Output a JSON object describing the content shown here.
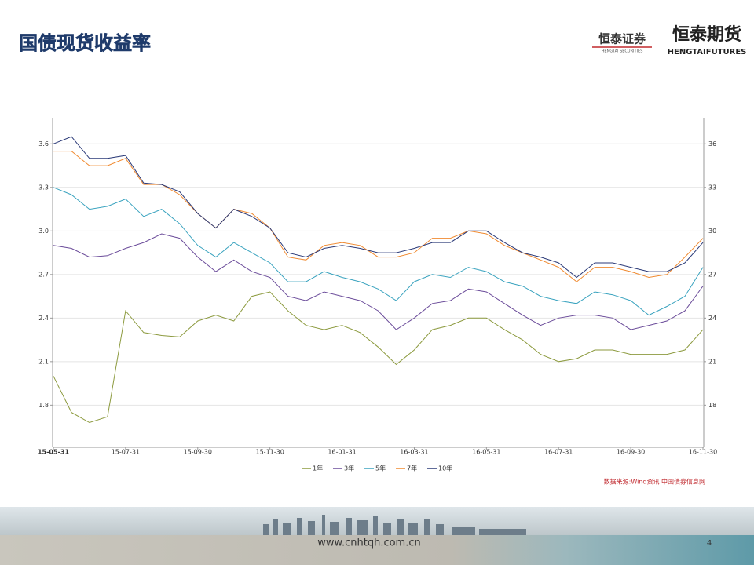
{
  "slide": {
    "title": "国债现货收益率",
    "logo1": "恒泰证券",
    "logo1_sub": "HENGTAI SECURITIES",
    "logo2": "恒泰期货",
    "logo2_sub": "HENGTAIFUTURES",
    "website": "www.cnhtqh.com.cn",
    "page": "4"
  },
  "chart_data": {
    "type": "line",
    "categories": [
      "15-05-31",
      null,
      null,
      null,
      "15-07-31",
      null,
      null,
      null,
      "15-09-30",
      null,
      null,
      null,
      "15-11-30",
      null,
      null,
      null,
      "16-01-31",
      null,
      null,
      null,
      "16-03-31",
      null,
      null,
      null,
      "16-05-31",
      null,
      null,
      null,
      "16-07-31",
      null,
      null,
      null,
      "16-09-30",
      null,
      null,
      null,
      "16-11-30"
    ],
    "series": [
      {
        "name": "1年",
        "color": "#8c9a3e",
        "values": [
          2.0,
          1.75,
          1.68,
          1.72,
          2.45,
          2.3,
          2.28,
          2.27,
          2.38,
          2.42,
          2.38,
          2.55,
          2.58,
          2.45,
          2.35,
          2.32,
          2.35,
          2.3,
          2.2,
          2.08,
          2.18,
          2.32,
          2.35,
          2.4,
          2.4,
          2.32,
          2.25,
          2.15,
          2.1,
          2.12,
          2.18,
          2.18,
          2.15,
          2.15,
          2.15,
          2.18,
          2.32
        ]
      },
      {
        "name": "3年",
        "color": "#6b4c9a",
        "values": [
          2.9,
          2.88,
          2.82,
          2.83,
          2.88,
          2.92,
          2.98,
          2.95,
          2.82,
          2.72,
          2.8,
          2.72,
          2.68,
          2.55,
          2.52,
          2.58,
          2.55,
          2.52,
          2.45,
          2.32,
          2.4,
          2.5,
          2.52,
          2.6,
          2.58,
          2.5,
          2.42,
          2.35,
          2.4,
          2.42,
          2.42,
          2.4,
          2.32,
          2.35,
          2.38,
          2.45,
          2.62
        ]
      },
      {
        "name": "5年",
        "color": "#3aa3bf",
        "values": [
          3.3,
          3.25,
          3.15,
          3.17,
          3.22,
          3.1,
          3.15,
          3.05,
          2.9,
          2.82,
          2.92,
          2.85,
          2.78,
          2.65,
          2.65,
          2.72,
          2.68,
          2.65,
          2.6,
          2.52,
          2.65,
          2.7,
          2.68,
          2.75,
          2.72,
          2.65,
          2.62,
          2.55,
          2.52,
          2.5,
          2.58,
          2.56,
          2.52,
          2.42,
          2.48,
          2.55,
          2.75
        ]
      },
      {
        "name": "7年",
        "color": "#f08a30",
        "values": [
          3.55,
          3.55,
          3.45,
          3.45,
          3.5,
          3.32,
          3.32,
          3.25,
          3.12,
          3.02,
          3.15,
          3.12,
          3.02,
          2.82,
          2.8,
          2.9,
          2.92,
          2.9,
          2.82,
          2.82,
          2.85,
          2.95,
          2.95,
          3.0,
          2.98,
          2.9,
          2.85,
          2.8,
          2.75,
          2.65,
          2.75,
          2.75,
          2.72,
          2.68,
          2.7,
          2.82,
          2.95
        ]
      },
      {
        "name": "10年",
        "color": "#2b3a78",
        "values": [
          3.6,
          3.65,
          3.5,
          3.5,
          3.52,
          3.33,
          3.32,
          3.27,
          3.12,
          3.02,
          3.15,
          3.1,
          3.02,
          2.85,
          2.82,
          2.88,
          2.9,
          2.88,
          2.85,
          2.85,
          2.88,
          2.92,
          2.92,
          3.0,
          3.0,
          2.92,
          2.85,
          2.82,
          2.78,
          2.68,
          2.78,
          2.78,
          2.75,
          2.72,
          2.72,
          2.78,
          2.92
        ]
      }
    ],
    "ylim": [
      1.51,
      3.78
    ],
    "yticks": [
      1.8,
      2.1,
      2.4,
      2.7,
      {
        "value": 3,
        "label": "3.0"
      },
      3.3,
      3.6
    ],
    "y2lim": [
      15.1,
      37.8
    ],
    "y2ticks": [
      18,
      21,
      24,
      27,
      30,
      33,
      36
    ],
    "grid": true,
    "legend": "bottom",
    "source": "数据来源:Wind资讯 中国债券信息网"
  }
}
